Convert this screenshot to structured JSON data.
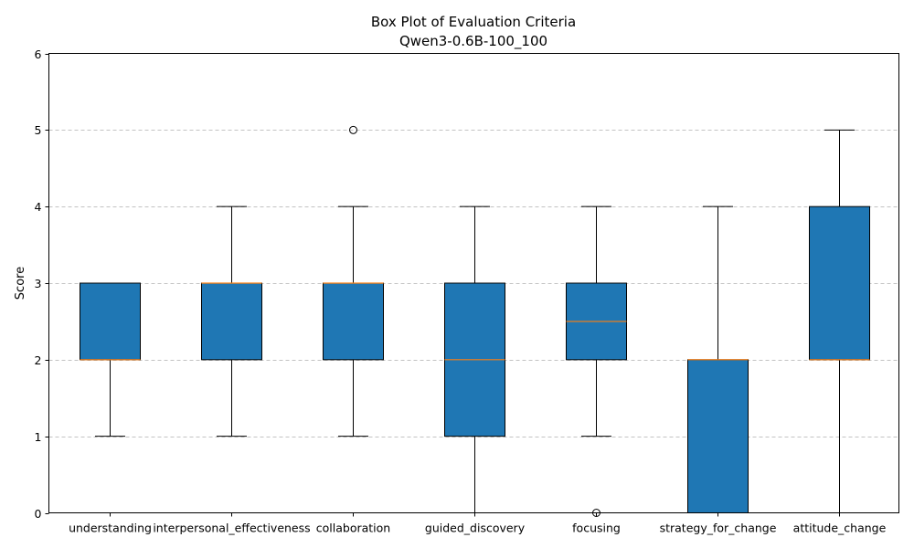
{
  "chart_data": {
    "type": "box",
    "title": "Box Plot of Evaluation Criteria",
    "subtitle": "Qwen3-0.6B-100_100",
    "xlabel": "",
    "ylabel": "Score",
    "ylim": [
      0,
      6
    ],
    "yticks": [
      "0",
      "1",
      "2",
      "3",
      "4",
      "5",
      "6"
    ],
    "grid": "y-dashed",
    "categories": [
      "understanding",
      "interpersonal_effectiveness",
      "collaboration",
      "guided_discovery",
      "focusing",
      "strategy_for_change",
      "attitude_change"
    ],
    "boxes": [
      {
        "whisker_low": 1,
        "q1": 2,
        "median": 2,
        "q3": 3,
        "whisker_high": 3,
        "outliers": []
      },
      {
        "whisker_low": 1,
        "q1": 2,
        "median": 3,
        "q3": 3,
        "whisker_high": 4,
        "outliers": []
      },
      {
        "whisker_low": 1,
        "q1": 2,
        "median": 3,
        "q3": 3,
        "whisker_high": 4,
        "outliers": [
          5
        ]
      },
      {
        "whisker_low": 0,
        "q1": 1,
        "median": 2,
        "q3": 3,
        "whisker_high": 4,
        "outliers": []
      },
      {
        "whisker_low": 1,
        "q1": 2,
        "median": 2.5,
        "q3": 3,
        "whisker_high": 4,
        "outliers": [
          0
        ]
      },
      {
        "whisker_low": 0,
        "q1": 0,
        "median": 2,
        "q3": 2,
        "whisker_high": 4,
        "outliers": []
      },
      {
        "whisker_low": 0,
        "q1": 2,
        "median": 2,
        "q3": 4,
        "whisker_high": 5,
        "outliers": []
      }
    ],
    "colors": {
      "box_fill": "#1f77b4",
      "median": "#ff7f0e",
      "edge": "#000000",
      "grid": "#b0b0b0"
    }
  }
}
